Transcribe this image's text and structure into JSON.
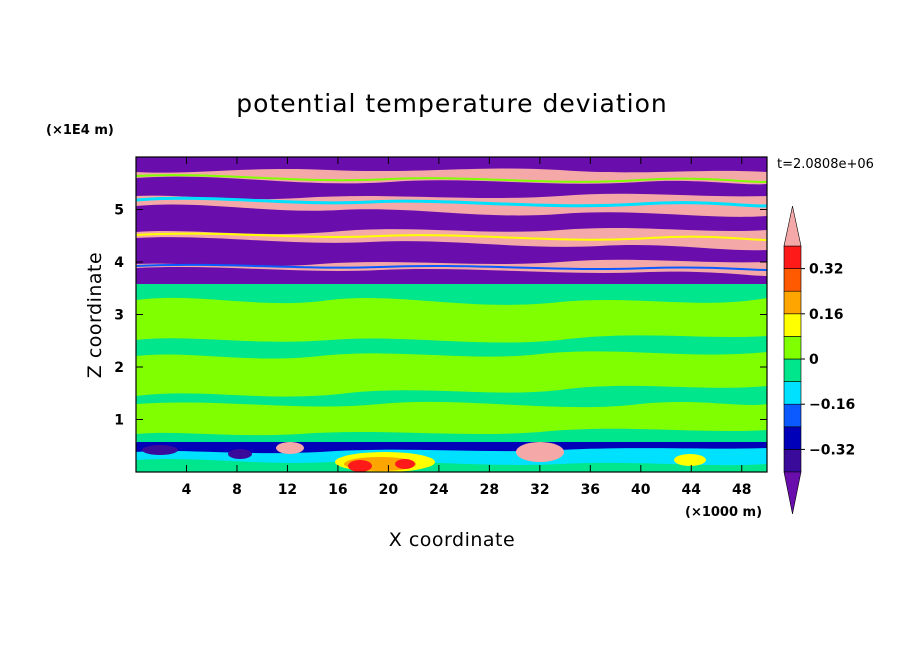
{
  "chart_data": {
    "type": "heatmap",
    "title": "potential temperature deviation",
    "xlabel": "X coordinate",
    "ylabel": "Z coordinate",
    "x_unit": "(×1000 m)",
    "y_unit": "(×1E4 m)",
    "time_label": "t=2.0808e+06",
    "xlim": [
      0,
      50
    ],
    "ylim": [
      0,
      6
    ],
    "x_ticks": [
      "4",
      "8",
      "12",
      "16",
      "20",
      "24",
      "28",
      "32",
      "36",
      "40",
      "44",
      "48"
    ],
    "y_ticks": [
      "1",
      "2",
      "3",
      "4",
      "5"
    ],
    "colorbar": {
      "levels": [
        -0.4,
        -0.32,
        -0.24,
        -0.16,
        -0.08,
        0,
        0.08,
        0.16,
        0.24,
        0.32,
        0.4
      ],
      "labels": [
        "0.32",
        "0.16",
        "0",
        "−0.16",
        "−0.32"
      ],
      "colors": [
        "#6a0dad",
        "#3a0a9a",
        "#0000b8",
        "#0a5aff",
        "#00e0ff",
        "#00e68c",
        "#80ff00",
        "#ffff00",
        "#ffa500",
        "#ff5a00",
        "#ff1a1a",
        "#f5a8a8"
      ],
      "extend": "both"
    },
    "bands": [
      {
        "z_range": [
          0,
          0.6
        ],
        "description_values": [
          -0.4,
          -0.32,
          -0.16,
          0,
          0.08,
          0.24,
          0.32,
          0.4
        ]
      },
      {
        "z_range": [
          0.6,
          3.5
        ],
        "dominant_values": [
          0,
          0.04,
          0.08
        ]
      },
      {
        "z_range": [
          3.5,
          6
        ],
        "dominant_values": [
          -0.4,
          0.4,
          -0.16,
          0.08,
          0.24
        ]
      }
    ]
  }
}
